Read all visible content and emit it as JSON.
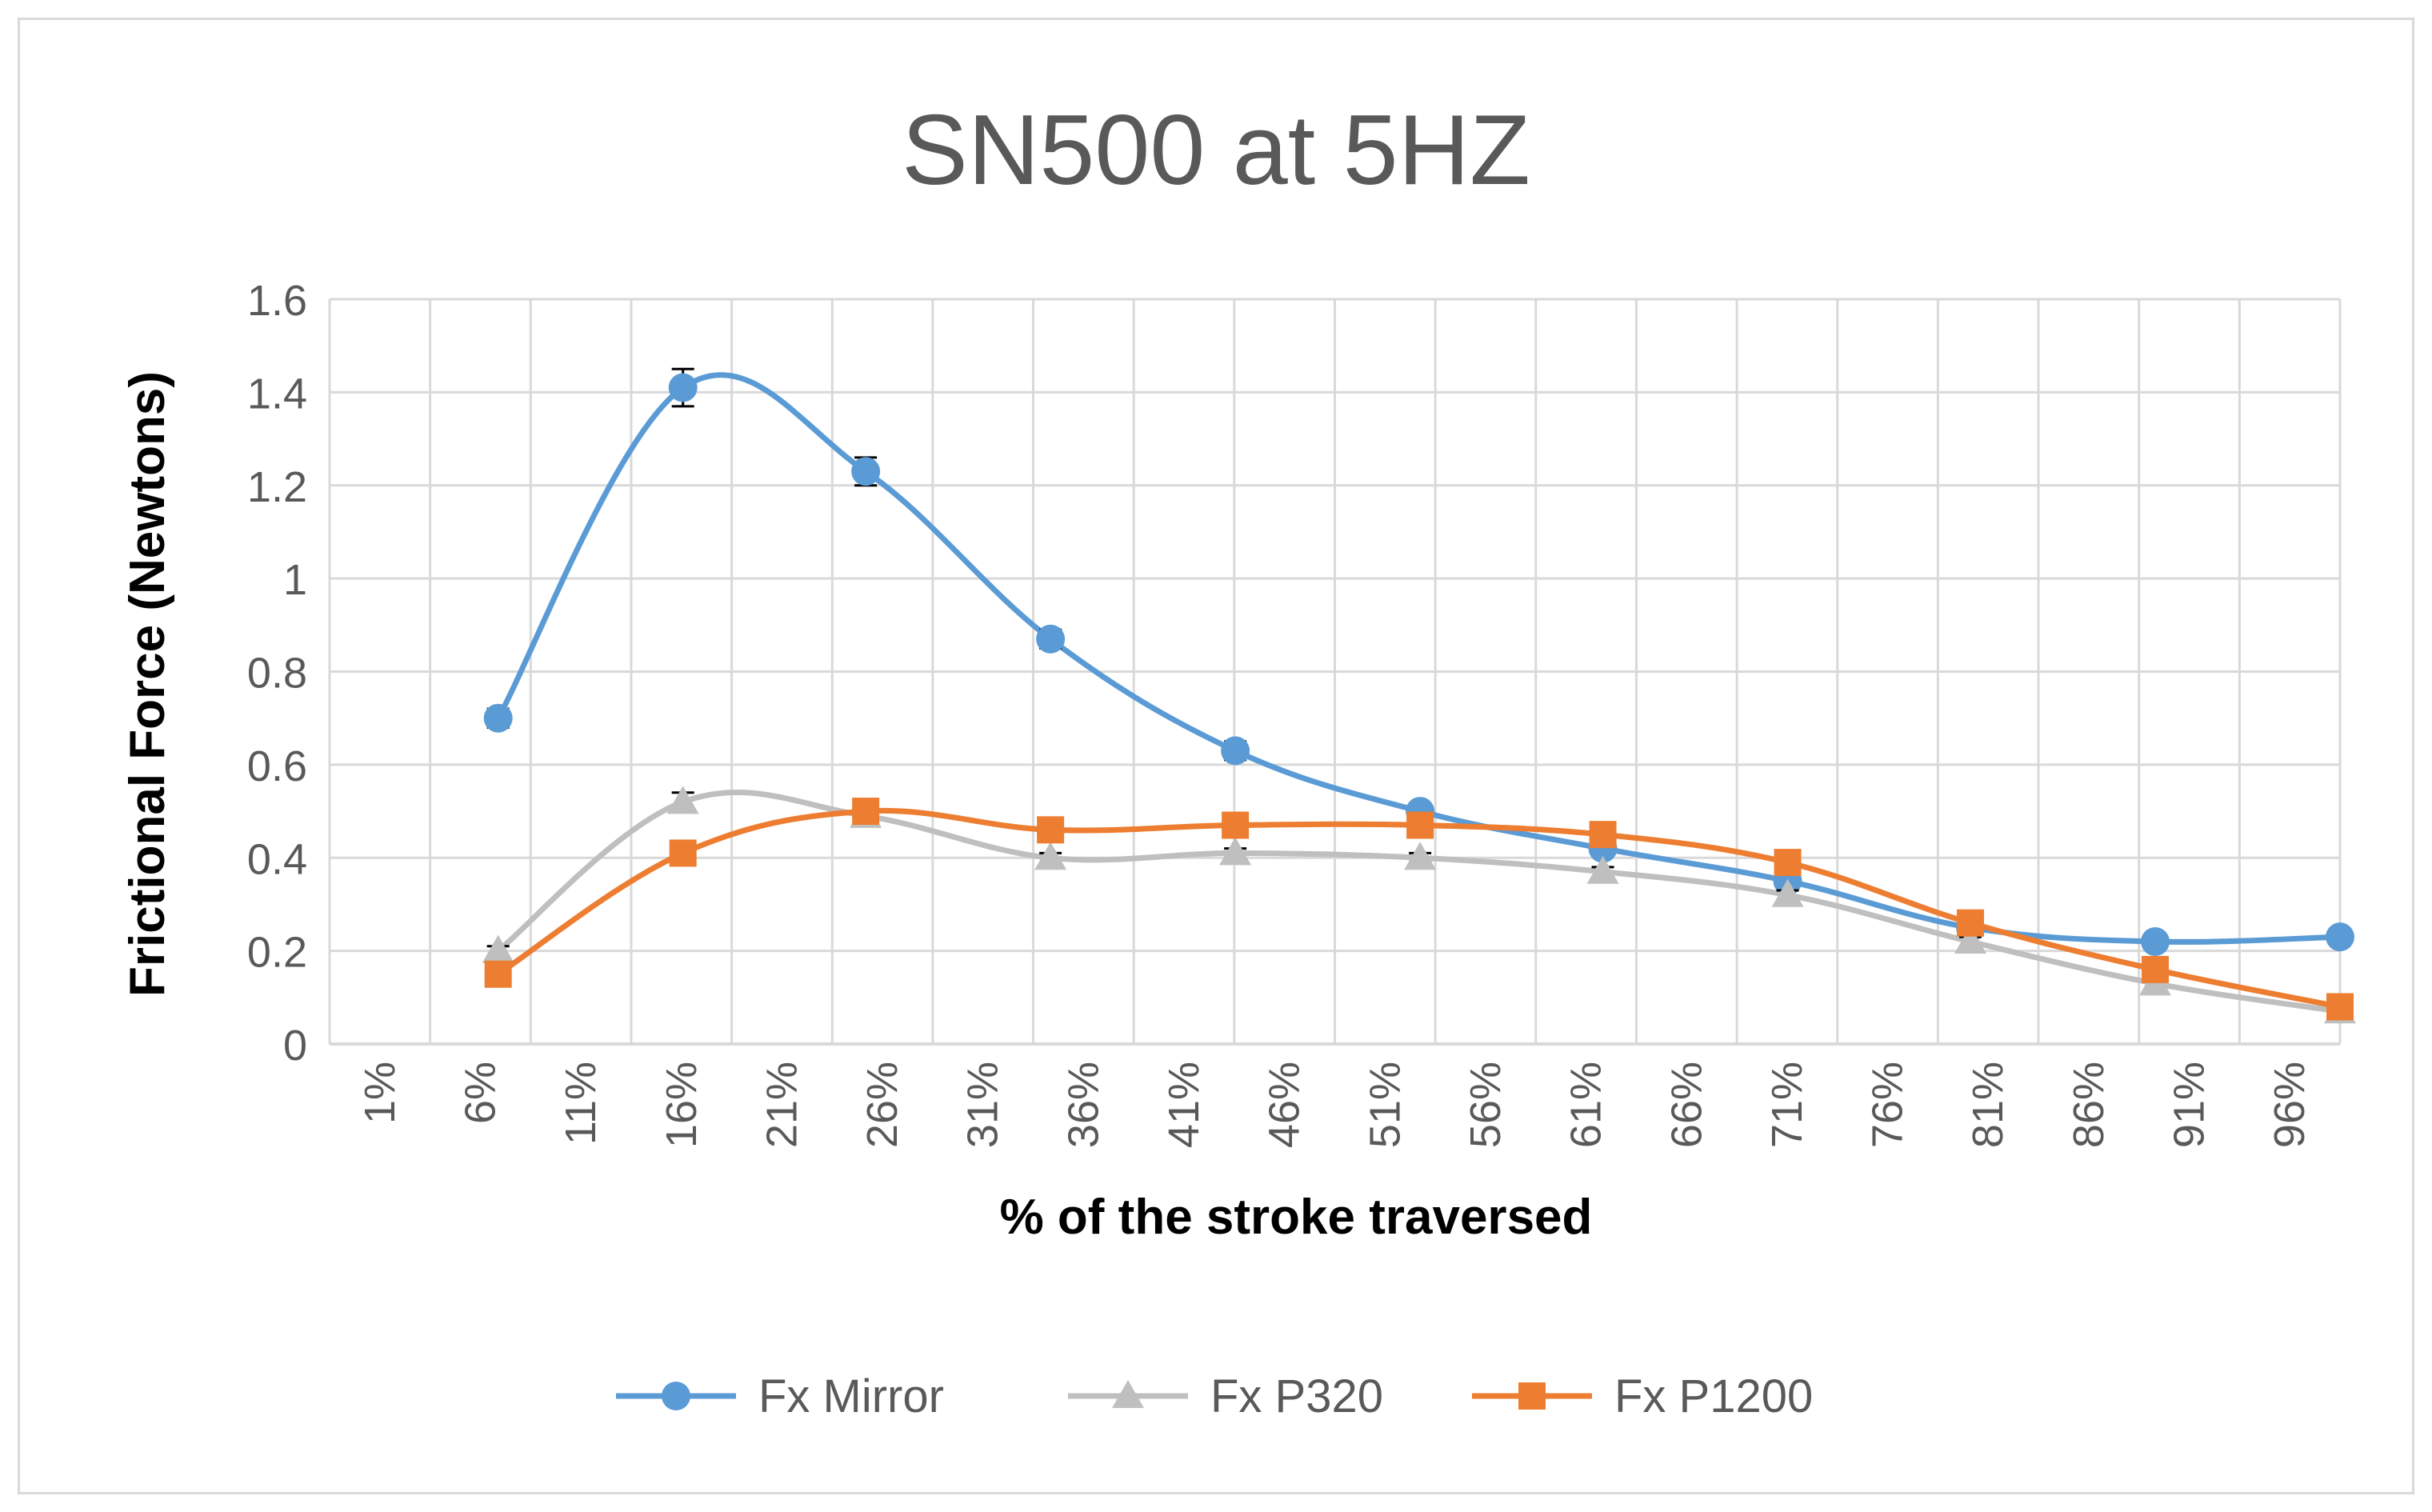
{
  "chart_data": {
    "type": "line",
    "title": "SN500 at 5HZ",
    "xlabel": "% of the stroke traversed",
    "ylabel": "Frictional Force (Newtons)",
    "x_tick_labels": [
      "1%",
      "6%",
      "11%",
      "16%",
      "21%",
      "26%",
      "31%",
      "36%",
      "41%",
      "46%",
      "51%",
      "56%",
      "61%",
      "66%",
      "71%",
      "76%",
      "81%",
      "86%",
      "91%",
      "96%"
    ],
    "x_range": [
      1,
      100
    ],
    "y_tick_labels": [
      "0",
      "0.2",
      "0.4",
      "0.6",
      "0.8",
      "1",
      "1.2",
      "1.4",
      "1.6"
    ],
    "ylim": [
      0,
      1.6
    ],
    "y_step": 0.2,
    "grid": true,
    "legend_position": "bottom",
    "series": [
      {
        "name": "Fx Mirror",
        "color": "#5b9bd5",
        "marker": "circle",
        "x": [
          9.3,
          18.4,
          27.4,
          36.5,
          45.6,
          54.7,
          63.7,
          72.8,
          81.8,
          90.9,
          100
        ],
        "values": [
          0.7,
          1.41,
          1.23,
          0.87,
          0.63,
          0.5,
          0.42,
          0.35,
          0.25,
          0.22,
          0.23
        ],
        "errors": [
          0.02,
          0.04,
          0.03,
          0.02,
          0.02,
          0.01,
          0.01,
          0.01,
          0.01,
          0.01,
          0.01
        ]
      },
      {
        "name": "Fx P320",
        "color": "#bfbfbf",
        "marker": "triangle",
        "x": [
          9.3,
          18.4,
          27.4,
          36.5,
          45.6,
          54.7,
          63.7,
          72.8,
          81.8,
          90.9,
          100
        ],
        "values": [
          0.2,
          0.52,
          0.49,
          0.4,
          0.41,
          0.4,
          0.37,
          0.32,
          0.22,
          0.13,
          0.07
        ],
        "errors": [
          0.01,
          0.02,
          0.02,
          0.01,
          0.01,
          0.01,
          0.01,
          0.01,
          0.01,
          0.01,
          0.01
        ]
      },
      {
        "name": "Fx P1200",
        "color": "#ed7d31",
        "marker": "square",
        "x": [
          9.3,
          18.4,
          27.4,
          36.5,
          45.6,
          54.7,
          63.7,
          72.8,
          81.8,
          90.9,
          100
        ],
        "values": [
          0.15,
          0.41,
          0.5,
          0.46,
          0.47,
          0.47,
          0.45,
          0.39,
          0.26,
          0.16,
          0.08
        ],
        "errors": [
          0.01,
          0.02,
          0.02,
          0.01,
          0.01,
          0.01,
          0.01,
          0.01,
          0.01,
          0.01,
          0.01
        ]
      }
    ]
  }
}
